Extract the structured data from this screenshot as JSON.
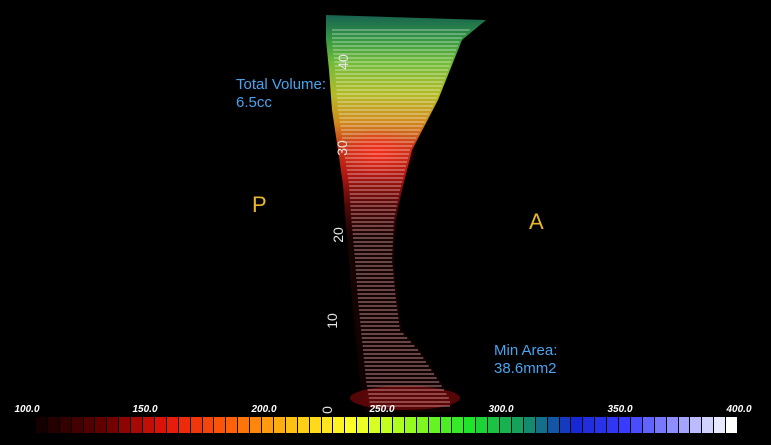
{
  "info": {
    "total_volume_label": "Total Volume:",
    "total_volume_value": "6.5cc",
    "min_area_label": "Min Area:",
    "min_area_value": "38.6mm2"
  },
  "orientation": {
    "posterior": "P",
    "anterior": "A"
  },
  "ruler": {
    "ticks": [
      "40",
      "30",
      "20",
      "10",
      "0"
    ]
  },
  "colorbar": {
    "labels": [
      "100.0",
      "150.0",
      "200.0",
      "250.0",
      "300.0",
      "350.0",
      "400.0"
    ]
  },
  "colors": {
    "info_text": "#4aa3ee",
    "orientation_text": "#e8b82a",
    "background": "#000000"
  }
}
